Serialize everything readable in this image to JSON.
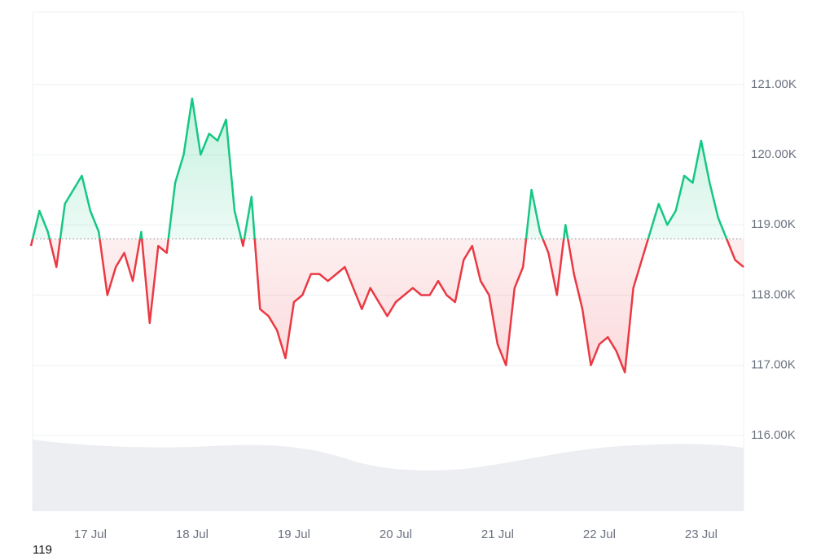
{
  "chart_data": {
    "type": "line",
    "categories": [
      null,
      null,
      null,
      null,
      null,
      null,
      null,
      "17 Jul",
      null,
      null,
      null,
      null,
      null,
      null,
      null,
      null,
      null,
      null,
      null,
      "18 Jul",
      null,
      null,
      null,
      null,
      null,
      null,
      null,
      null,
      null,
      null,
      null,
      "19 Jul",
      null,
      null,
      null,
      null,
      null,
      null,
      null,
      null,
      null,
      null,
      null,
      "20 Jul",
      null,
      null,
      null,
      null,
      null,
      null,
      null,
      null,
      null,
      null,
      null,
      "21 Jul",
      null,
      null,
      null,
      null,
      null,
      null,
      null,
      null,
      null,
      null,
      null,
      "22 Jul",
      null,
      null,
      null,
      null,
      null,
      null,
      null,
      null,
      null,
      null,
      null,
      "23 Jul",
      null,
      null,
      null,
      null,
      null
    ],
    "values": [
      118.7,
      119.2,
      118.9,
      118.4,
      119.3,
      119.5,
      119.7,
      119.2,
      118.9,
      118.0,
      118.4,
      118.6,
      118.2,
      118.9,
      117.6,
      118.7,
      118.6,
      119.6,
      120.0,
      120.8,
      120.0,
      120.3,
      120.2,
      120.5,
      119.2,
      118.7,
      119.4,
      117.8,
      117.7,
      117.5,
      117.1,
      117.9,
      118.0,
      118.3,
      118.3,
      118.2,
      118.3,
      118.4,
      118.1,
      117.8,
      118.1,
      117.9,
      117.7,
      117.9,
      118.0,
      118.1,
      118.0,
      118.0,
      118.2,
      118.0,
      117.9,
      118.5,
      118.7,
      118.2,
      118.0,
      117.3,
      117.0,
      118.1,
      118.4,
      119.5,
      118.9,
      118.6,
      118.0,
      119.0,
      118.3,
      117.8,
      117.0,
      117.3,
      117.4,
      117.2,
      116.9,
      118.1,
      118.5,
      118.9,
      119.3,
      119.0,
      119.2,
      119.7,
      119.6,
      120.2,
      119.6,
      119.1,
      118.8,
      118.5,
      118.4
    ],
    "baseline": 118.8,
    "baseline_label": "119",
    "up_color": "#16c784",
    "down_color": "#ea3943",
    "ylim": [
      114.92,
      122.03
    ],
    "yticks": [
      {
        "value": 116,
        "label": "116.00K"
      },
      {
        "value": 117,
        "label": "117.00K"
      },
      {
        "value": 118,
        "label": "118.00K"
      },
      {
        "value": 119,
        "label": "119.00K"
      },
      {
        "value": 120,
        "label": "120.00K"
      },
      {
        "value": 121,
        "label": "121.00K"
      }
    ],
    "grid": true
  }
}
